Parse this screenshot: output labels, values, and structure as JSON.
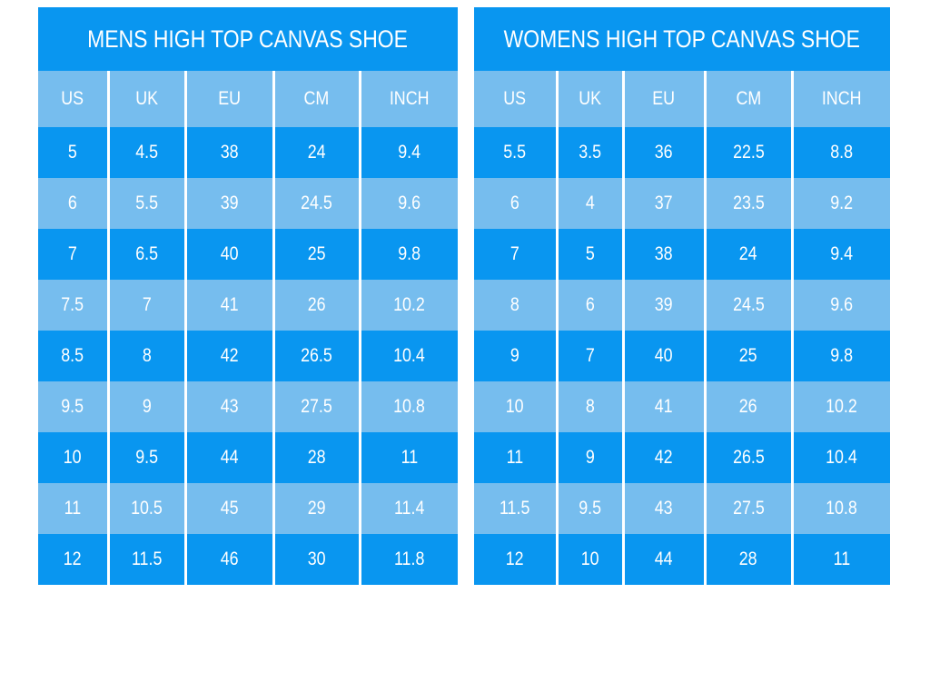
{
  "colors": {
    "table_blue": "#0996f0",
    "table_light_blue": "#76bdee",
    "divider_white": "#ffffff"
  },
  "chart_data": [
    {
      "type": "table",
      "title": "MENS HIGH TOP CANVAS SHOE",
      "columns": [
        "US",
        "UK",
        "EU",
        "CM",
        "INCH"
      ],
      "rows": [
        [
          "5",
          "4.5",
          "38",
          "24",
          "9.4"
        ],
        [
          "6",
          "5.5",
          "39",
          "24.5",
          "9.6"
        ],
        [
          "7",
          "6.5",
          "40",
          "25",
          "9.8"
        ],
        [
          "7.5",
          "7",
          "41",
          "26",
          "10.2"
        ],
        [
          "8.5",
          "8",
          "42",
          "26.5",
          "10.4"
        ],
        [
          "9.5",
          "9",
          "43",
          "27.5",
          "10.8"
        ],
        [
          "10",
          "9.5",
          "44",
          "28",
          "11"
        ],
        [
          "11",
          "10.5",
          "45",
          "29",
          "11.4"
        ],
        [
          "12",
          "11.5",
          "46",
          "30",
          "11.8"
        ]
      ],
      "layout": {
        "row_striping": "odd rows dark blue, even rows light blue",
        "header_fill": "light blue",
        "title_fill": "dark blue"
      }
    },
    {
      "type": "table",
      "title": "WOMENS HIGH TOP CANVAS SHOE",
      "columns": [
        "US",
        "UK",
        "EU",
        "CM",
        "INCH"
      ],
      "rows": [
        [
          "5.5",
          "3.5",
          "36",
          "22.5",
          "8.8"
        ],
        [
          "6",
          "4",
          "37",
          "23.5",
          "9.2"
        ],
        [
          "7",
          "5",
          "38",
          "24",
          "9.4"
        ],
        [
          "8",
          "6",
          "39",
          "24.5",
          "9.6"
        ],
        [
          "9",
          "7",
          "40",
          "25",
          "9.8"
        ],
        [
          "10",
          "8",
          "41",
          "26",
          "10.2"
        ],
        [
          "11",
          "9",
          "42",
          "26.5",
          "10.4"
        ],
        [
          "11.5",
          "9.5",
          "43",
          "27.5",
          "10.8"
        ],
        [
          "12",
          "10",
          "44",
          "28",
          "11"
        ]
      ],
      "layout": {
        "row_striping": "odd rows dark blue, even rows light blue",
        "header_fill": "light blue",
        "title_fill": "dark blue"
      }
    }
  ]
}
